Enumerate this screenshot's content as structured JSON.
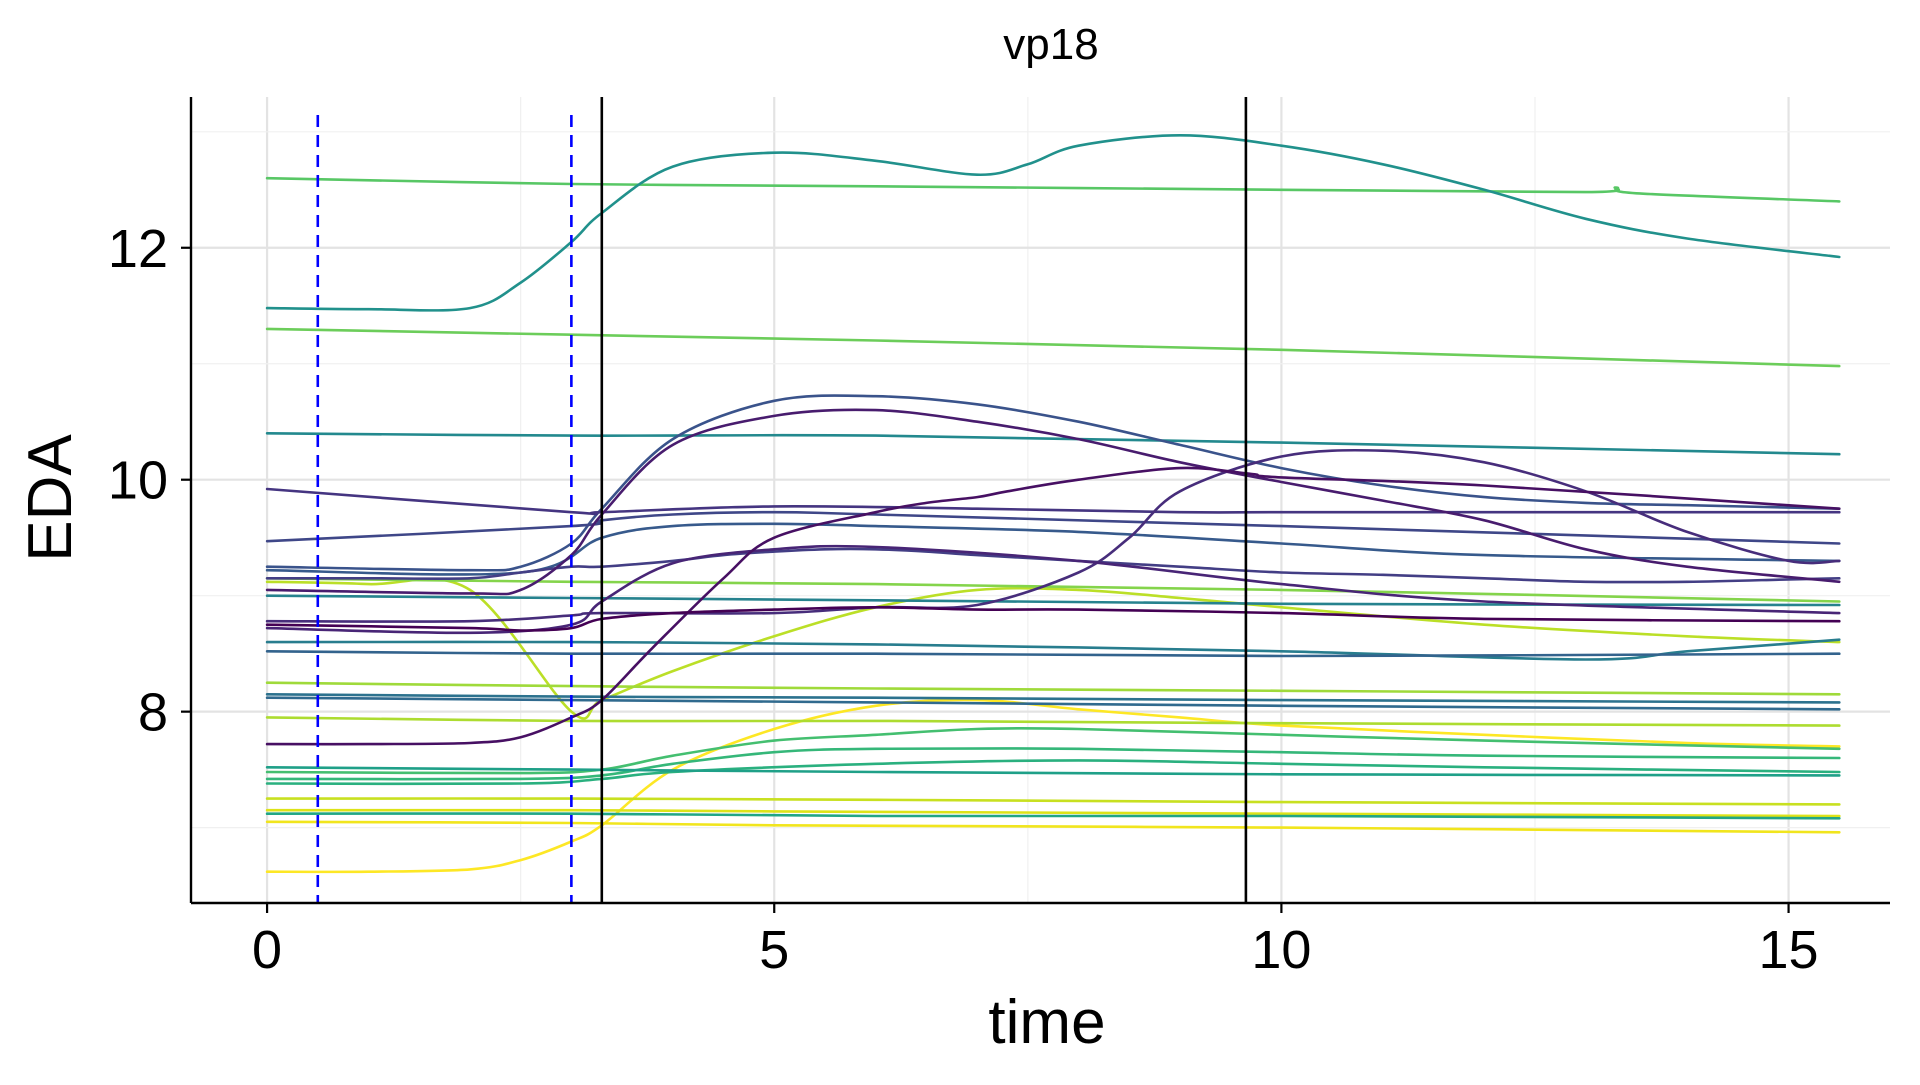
{
  "chart_data": {
    "type": "line",
    "title": "vp18",
    "xlabel": "time",
    "ylabel": "EDA",
    "xlim": [
      -0.75,
      16
    ],
    "ylim": [
      6.35,
      13.3
    ],
    "x_ticks": [
      0,
      5,
      10,
      15
    ],
    "x_tick_labels": [
      "0",
      "5",
      "10",
      "15"
    ],
    "y_ticks": [
      8,
      10,
      12
    ],
    "y_tick_labels": [
      "8",
      "10",
      "12"
    ],
    "grid": true,
    "legend": "none",
    "vlines_dashed": {
      "x": [
        0.5,
        3.0
      ],
      "color": "#0000FF"
    },
    "vlines_solid": {
      "x": [
        3.3,
        9.65
      ],
      "color": "#000000"
    },
    "series": [
      {
        "color": "#FDE725",
        "x": [
          0,
          1,
          2,
          2.5,
          3,
          3.3,
          4,
          5,
          6,
          7,
          8,
          9,
          10,
          12,
          14,
          15.5
        ],
        "values": [
          6.62,
          6.62,
          6.64,
          6.72,
          6.88,
          7.02,
          7.5,
          7.85,
          8.05,
          8.1,
          8.02,
          7.95,
          7.88,
          7.8,
          7.73,
          7.7
        ]
      },
      {
        "color": "#F1E51D",
        "x": [
          0,
          3,
          5,
          10,
          15.5
        ],
        "values": [
          7.05,
          7.04,
          7.02,
          7.0,
          6.96
        ]
      },
      {
        "color": "#DDE318",
        "x": [
          0,
          3,
          5,
          10,
          15.5
        ],
        "values": [
          7.15,
          7.15,
          7.14,
          7.12,
          7.1
        ]
      },
      {
        "color": "#C8E020",
        "x": [
          0,
          3,
          6,
          10,
          15.5
        ],
        "values": [
          7.25,
          7.25,
          7.24,
          7.22,
          7.2
        ]
      },
      {
        "color": "#BBDF27",
        "x": [
          0,
          1,
          2,
          3,
          3.3,
          4,
          5,
          6,
          7,
          8,
          9,
          10,
          12,
          14,
          15.5
        ],
        "values": [
          9.12,
          9.1,
          9.05,
          8.0,
          8.1,
          8.35,
          8.65,
          8.9,
          9.05,
          9.05,
          8.98,
          8.9,
          8.75,
          8.65,
          8.6
        ]
      },
      {
        "color": "#ADDC30",
        "x": [
          0,
          3,
          6,
          10,
          15.5
        ],
        "values": [
          7.95,
          7.92,
          7.92,
          7.9,
          7.88
        ]
      },
      {
        "color": "#9FDA3A",
        "x": [
          0,
          3,
          6,
          10,
          15.5
        ],
        "values": [
          8.25,
          8.22,
          8.2,
          8.18,
          8.15
        ]
      },
      {
        "color": "#84D44B",
        "x": [
          0,
          3,
          6,
          10,
          15.5
        ],
        "values": [
          9.15,
          9.12,
          9.1,
          9.05,
          8.95
        ]
      },
      {
        "color": "#6CCD5A",
        "x": [
          0,
          3,
          6,
          10,
          15.5
        ],
        "values": [
          11.3,
          11.25,
          11.2,
          11.12,
          10.98
        ]
      },
      {
        "color": "#58C765",
        "x": [
          0,
          3,
          6,
          10,
          13,
          13.3,
          13.5,
          15.5
        ],
        "values": [
          12.6,
          12.55,
          12.53,
          12.5,
          12.48,
          12.52,
          12.47,
          12.4
        ]
      },
      {
        "color": "#44BF70",
        "x": [
          0,
          2.5,
          3.3,
          4,
          5,
          6,
          7,
          8,
          10,
          12,
          15.5
        ],
        "values": [
          7.48,
          7.47,
          7.5,
          7.62,
          7.75,
          7.8,
          7.85,
          7.85,
          7.8,
          7.75,
          7.68
        ]
      },
      {
        "color": "#35B779",
        "x": [
          0,
          2.5,
          3.3,
          4,
          5,
          6,
          8,
          10,
          12,
          15.5
        ],
        "values": [
          7.42,
          7.42,
          7.45,
          7.55,
          7.65,
          7.68,
          7.68,
          7.65,
          7.62,
          7.6
        ]
      },
      {
        "color": "#2AB07F",
        "x": [
          0,
          2.5,
          3.3,
          4,
          6,
          8,
          10,
          12,
          15.5
        ],
        "values": [
          7.38,
          7.38,
          7.42,
          7.48,
          7.55,
          7.58,
          7.55,
          7.52,
          7.48
        ]
      },
      {
        "color": "#21A685",
        "x": [
          0,
          3,
          6,
          10,
          15.5
        ],
        "values": [
          7.12,
          7.12,
          7.1,
          7.1,
          7.08
        ]
      },
      {
        "color": "#1FA088",
        "x": [
          0,
          3,
          6,
          10,
          15.5
        ],
        "values": [
          7.52,
          7.5,
          7.48,
          7.46,
          7.45
        ]
      },
      {
        "color": "#21918C",
        "x": [
          0,
          1,
          2,
          2.5,
          3,
          3.3,
          4,
          5,
          6,
          7,
          7.5,
          8,
          9,
          10,
          11,
          12,
          13,
          14,
          15.5
        ],
        "values": [
          11.48,
          11.47,
          11.48,
          11.7,
          12.05,
          12.3,
          12.7,
          12.82,
          12.75,
          12.63,
          12.72,
          12.88,
          12.97,
          12.88,
          12.72,
          12.5,
          12.25,
          12.08,
          11.92
        ]
      },
      {
        "color": "#23898E",
        "x": [
          0,
          3,
          6,
          10,
          15.5
        ],
        "values": [
          10.4,
          10.38,
          10.38,
          10.32,
          10.22
        ]
      },
      {
        "color": "#26828E",
        "x": [
          0,
          3,
          6,
          10,
          15.5
        ],
        "values": [
          9.0,
          8.98,
          8.96,
          8.93,
          8.92
        ]
      },
      {
        "color": "#287D8E",
        "x": [
          0,
          3,
          6,
          10,
          13,
          14,
          15.5
        ],
        "values": [
          8.6,
          8.6,
          8.58,
          8.52,
          8.45,
          8.52,
          8.62
        ]
      },
      {
        "color": "#2C728E",
        "x": [
          0,
          3,
          6,
          10,
          15.5
        ],
        "values": [
          8.15,
          8.13,
          8.12,
          8.1,
          8.08
        ]
      },
      {
        "color": "#306A8E",
        "x": [
          0,
          3,
          6,
          10,
          15.5
        ],
        "values": [
          8.12,
          8.1,
          8.08,
          8.05,
          8.02
        ]
      },
      {
        "color": "#33638D",
        "x": [
          0,
          3,
          6,
          10,
          15.5
        ],
        "values": [
          8.52,
          8.5,
          8.5,
          8.48,
          8.5
        ]
      },
      {
        "color": "#375A8C",
        "x": [
          0,
          2.5,
          3.3,
          4,
          5,
          6,
          8,
          10,
          12,
          15.5
        ],
        "values": [
          9.22,
          9.2,
          9.5,
          9.6,
          9.62,
          9.6,
          9.55,
          9.45,
          9.35,
          9.3
        ]
      },
      {
        "color": "#3A538B",
        "x": [
          0,
          2,
          2.5,
          3,
          3.3,
          4,
          5,
          6,
          7,
          8,
          9,
          10,
          11,
          12,
          13,
          14,
          15.5
        ],
        "values": [
          9.25,
          9.22,
          9.25,
          9.45,
          9.75,
          10.35,
          10.68,
          10.72,
          10.65,
          10.5,
          10.3,
          10.1,
          9.95,
          9.85,
          9.8,
          9.78,
          9.75
        ]
      },
      {
        "color": "#3F4788",
        "x": [
          0,
          3,
          3.3,
          4,
          5,
          6,
          10,
          15.5
        ],
        "values": [
          9.47,
          9.6,
          9.65,
          9.7,
          9.72,
          9.7,
          9.6,
          9.45
        ]
      },
      {
        "color": "#433E85",
        "x": [
          0,
          1,
          2,
          2.5,
          3,
          3.3,
          4,
          4.5,
          5,
          5.5,
          6,
          6.5,
          7,
          8,
          9,
          10,
          11,
          12,
          13,
          14,
          15,
          15.5
        ],
        "values": [
          9.15,
          9.15,
          9.15,
          9.2,
          9.25,
          9.25,
          9.3,
          9.35,
          9.38,
          9.4,
          9.4,
          9.38,
          9.35,
          9.3,
          9.25,
          9.2,
          9.18,
          9.15,
          9.12,
          9.12,
          9.14,
          9.15
        ]
      },
      {
        "color": "#453581",
        "x": [
          0,
          3,
          3.3,
          5,
          7,
          9,
          10,
          12,
          15.5
        ],
        "values": [
          9.92,
          9.72,
          9.72,
          9.77,
          9.75,
          9.72,
          9.72,
          9.72,
          9.72
        ]
      },
      {
        "color": "#472D7B",
        "x": [
          0,
          2,
          3,
          3.3,
          5,
          6,
          7,
          8,
          8.5,
          9,
          10,
          11,
          12,
          13,
          14,
          15,
          15.5
        ],
        "values": [
          8.78,
          8.78,
          8.83,
          8.85,
          8.85,
          8.9,
          8.92,
          9.2,
          9.5,
          9.9,
          10.2,
          10.25,
          10.15,
          9.9,
          9.55,
          9.3,
          9.3
        ]
      },
      {
        "color": "#482576",
        "x": [
          0,
          2,
          3,
          3.3,
          4,
          5,
          6,
          8,
          10,
          12,
          15.5
        ],
        "values": [
          8.72,
          8.68,
          8.75,
          8.95,
          9.28,
          9.4,
          9.42,
          9.3,
          9.1,
          8.95,
          8.85
        ]
      },
      {
        "color": "#481C6E",
        "x": [
          0,
          2,
          2.5,
          3,
          3.3,
          4,
          5,
          6,
          7,
          8,
          9,
          10,
          11,
          12,
          13,
          14,
          15.5
        ],
        "values": [
          9.05,
          9.02,
          9.05,
          9.35,
          9.7,
          10.3,
          10.55,
          10.6,
          10.5,
          10.35,
          10.15,
          9.98,
          9.82,
          9.65,
          9.4,
          9.25,
          9.12
        ]
      },
      {
        "color": "#471063",
        "x": [
          0,
          1,
          2,
          2.5,
          3,
          3.3,
          3.8,
          4.5,
          5,
          6,
          6.5,
          7,
          7.3,
          8,
          9,
          9.7,
          10,
          12,
          15.5
        ],
        "values": [
          7.72,
          7.72,
          7.73,
          7.78,
          7.95,
          8.1,
          8.55,
          9.15,
          9.5,
          9.72,
          9.8,
          9.85,
          9.9,
          10.0,
          10.1,
          10.05,
          10.02,
          9.95,
          9.75
        ]
      },
      {
        "color": "#440154",
        "x": [
          0,
          2,
          2.5,
          3,
          3.3,
          4,
          5,
          6,
          7,
          8,
          10,
          12,
          15.5
        ],
        "values": [
          8.75,
          8.72,
          8.7,
          8.72,
          8.8,
          8.85,
          8.88,
          8.9,
          8.88,
          8.88,
          8.85,
          8.8,
          8.78
        ]
      }
    ]
  }
}
